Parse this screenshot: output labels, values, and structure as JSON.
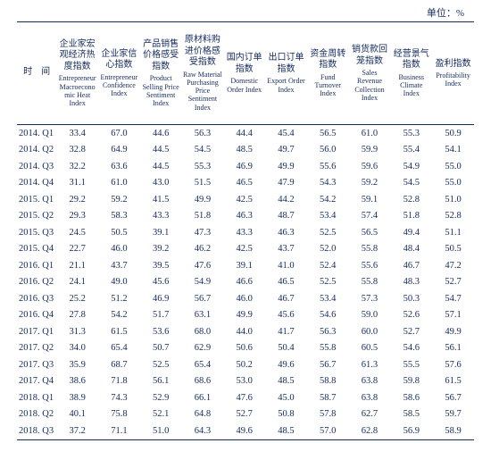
{
  "unit_label": "单位：%",
  "columns": [
    {
      "cn": "时　间",
      "en": ""
    },
    {
      "cn": "企业家宏观经济热度指数",
      "en": "Entrepreneur Macroeconomic Heat Index"
    },
    {
      "cn": "企业家信心指数",
      "en": "Entrepreneur Confidence Index"
    },
    {
      "cn": "产品销售价格感受指数",
      "en": "Product Selling Price Sentiment Index"
    },
    {
      "cn": "原材料购进价格感受指数",
      "en": "Raw Material Purchasing Price Sentiment Index"
    },
    {
      "cn": "国内订单指数",
      "en": "Domestic Order Index"
    },
    {
      "cn": "出口订单指数",
      "en": "Export Order Index"
    },
    {
      "cn": "资金周转指数",
      "en": "Fund Turnover Index"
    },
    {
      "cn": "销货款回笼指数",
      "en": "Sales Revenue Collection Index"
    },
    {
      "cn": "经营景气指数",
      "en": "Business Climate Index"
    },
    {
      "cn": "盈利指数",
      "en": "Profitability Index"
    }
  ],
  "rows": [
    {
      "p": "2014. Q1",
      "v": [
        "33.4",
        "67.0",
        "44.6",
        "56.3",
        "44.4",
        "45.4",
        "56.5",
        "61.0",
        "55.3",
        "50.9"
      ]
    },
    {
      "p": "2014. Q2",
      "v": [
        "32.8",
        "64.9",
        "44.5",
        "54.5",
        "48.5",
        "49.7",
        "56.0",
        "59.9",
        "55.4",
        "54.1"
      ]
    },
    {
      "p": "2014. Q3",
      "v": [
        "32.2",
        "63.6",
        "44.5",
        "55.3",
        "46.9",
        "49.9",
        "55.6",
        "59.6",
        "54.9",
        "55.0"
      ]
    },
    {
      "p": "2014. Q4",
      "v": [
        "31.1",
        "61.0",
        "43.0",
        "51.5",
        "46.5",
        "47.9",
        "54.3",
        "59.2",
        "54.5",
        "55.0"
      ]
    },
    {
      "p": "2015. Q1",
      "v": [
        "29.2",
        "59.2",
        "41.5",
        "49.9",
        "42.5",
        "44.2",
        "54.2",
        "59.1",
        "52.8",
        "51.0"
      ]
    },
    {
      "p": "2015. Q2",
      "v": [
        "29.3",
        "58.3",
        "43.3",
        "51.8",
        "46.3",
        "48.7",
        "53.4",
        "57.4",
        "51.8",
        "52.8"
      ]
    },
    {
      "p": "2015. Q3",
      "v": [
        "24.5",
        "50.5",
        "39.1",
        "47.3",
        "43.3",
        "46.3",
        "52.5",
        "56.5",
        "49.4",
        "51.1"
      ]
    },
    {
      "p": "2015. Q4",
      "v": [
        "22.7",
        "46.0",
        "39.2",
        "46.2",
        "42.5",
        "43.7",
        "52.0",
        "55.8",
        "48.4",
        "50.5"
      ]
    },
    {
      "p": "2016. Q1",
      "v": [
        "21.1",
        "43.7",
        "39.5",
        "47.6",
        "39.1",
        "41.0",
        "52.4",
        "55.6",
        "46.7",
        "47.2"
      ]
    },
    {
      "p": "2016. Q2",
      "v": [
        "24.1",
        "49.0",
        "45.6",
        "54.9",
        "46.6",
        "46.5",
        "52.5",
        "55.8",
        "48.3",
        "52.7"
      ]
    },
    {
      "p": "2016. Q3",
      "v": [
        "25.2",
        "51.2",
        "46.9",
        "56.7",
        "46.0",
        "46.7",
        "53.4",
        "57.3",
        "50.3",
        "54.7"
      ]
    },
    {
      "p": "2016. Q4",
      "v": [
        "27.8",
        "54.2",
        "51.7",
        "63.1",
        "49.9",
        "45.6",
        "54.6",
        "59.0",
        "52.6",
        "57.1"
      ]
    },
    {
      "p": "2017. Q1",
      "v": [
        "31.3",
        "61.5",
        "53.6",
        "68.0",
        "44.0",
        "41.7",
        "56.3",
        "60.0",
        "52.7",
        "49.9"
      ]
    },
    {
      "p": "2017. Q2",
      "v": [
        "34.0",
        "65.4",
        "50.7",
        "62.9",
        "50.6",
        "50.4",
        "55.8",
        "60.5",
        "54.6",
        "56.1"
      ]
    },
    {
      "p": "2017. Q3",
      "v": [
        "35.9",
        "68.7",
        "52.5",
        "65.4",
        "50.2",
        "49.6",
        "56.7",
        "61.3",
        "55.5",
        "57.6"
      ]
    },
    {
      "p": "2017. Q4",
      "v": [
        "38.6",
        "71.8",
        "56.1",
        "68.6",
        "53.0",
        "48.5",
        "58.8",
        "63.8",
        "59.8",
        "61.5"
      ]
    },
    {
      "p": "2018. Q1",
      "v": [
        "38.9",
        "74.3",
        "52.9",
        "66.1",
        "47.6",
        "45.0",
        "58.7",
        "63.8",
        "58.6",
        "56.7"
      ]
    },
    {
      "p": "2018. Q2",
      "v": [
        "40.1",
        "75.8",
        "52.1",
        "64.8",
        "52.7",
        "50.8",
        "57.8",
        "62.7",
        "58.5",
        "59.7"
      ]
    },
    {
      "p": "2018. Q3",
      "v": [
        "37.2",
        "71.1",
        "51.0",
        "64.3",
        "49.6",
        "48.5",
        "57.0",
        "62.8",
        "56.9",
        "58.9"
      ]
    }
  ],
  "colors": {
    "text": "#142a5c",
    "background": "#ffffff",
    "rule": "#142a5c"
  }
}
